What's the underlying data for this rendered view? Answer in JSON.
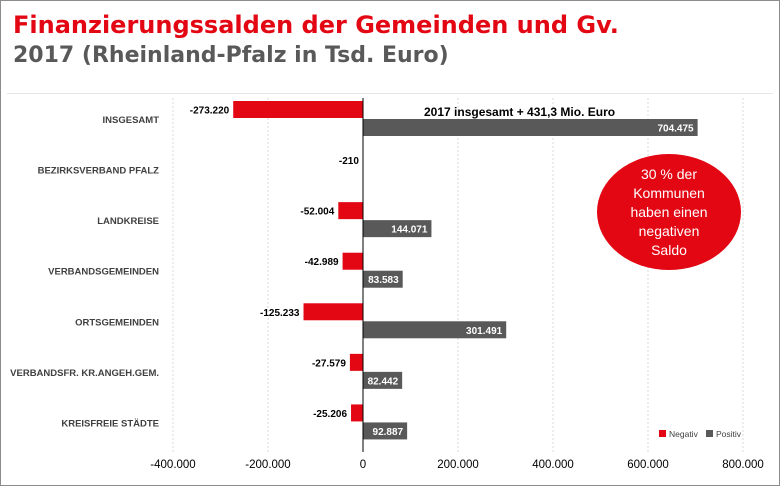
{
  "title": "Finanzierungssalden der Gemeinden und Gv.",
  "subtitle_year": "2017",
  "subtitle_rest": "(Rheinland-Pfalz in Tsd. Euro)",
  "colors": {
    "negative": "#e30613",
    "positive": "#595959",
    "title": "#e30613",
    "subtitle": "#595959",
    "callout": "#e30613"
  },
  "chart_data": {
    "type": "bar",
    "orientation": "horizontal",
    "categories": [
      "INSGESAMT",
      "BEZIRKSVERBAND PFALZ",
      "LANDKREISE",
      "VERBANDSGEMEINDEN",
      "ORTSGEMEINDEN",
      "VERBANDSFR. KR.ANGEH.GEM.",
      "KREISFREIE STÄDTE"
    ],
    "series": [
      {
        "name": "Negativ",
        "values": [
          -273220,
          -210,
          -52004,
          -42989,
          -125233,
          -27579,
          -25206
        ],
        "labels": [
          "-273.220",
          "-210",
          "-52.004",
          "-42.989",
          "-125.233",
          "-27.579",
          "-25.206"
        ]
      },
      {
        "name": "Positiv",
        "values": [
          704475,
          null,
          144071,
          83583,
          301491,
          82442,
          92887
        ],
        "labels": [
          "704.475",
          "",
          "144.071",
          "83.583",
          "301.491",
          "82.442",
          "92.887"
        ]
      }
    ],
    "xlim": [
      -400000,
      800000
    ],
    "xticks": [
      -400000,
      -200000,
      0,
      200000,
      400000,
      600000,
      800000
    ],
    "xtick_labels": [
      "-400.000",
      "-200.000",
      "0",
      "200.000",
      "400.000",
      "600.000",
      "800.000"
    ],
    "grid": "vertical",
    "legend": "bottom-right",
    "annotation_total": "2017 insgesamt + 431,3 Mio. Euro",
    "callout_lines": [
      "30 % der",
      "Kommunen",
      "haben einen",
      "negativen",
      "Saldo"
    ]
  }
}
